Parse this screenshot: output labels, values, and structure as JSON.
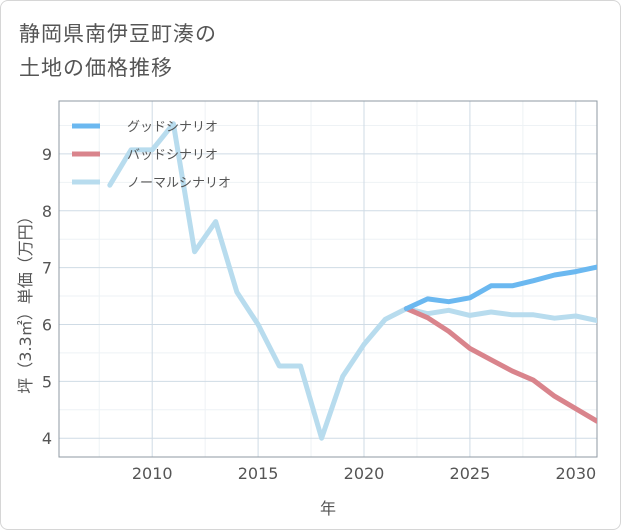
{
  "title": {
    "line1": "静岡県南伊豆町湊の",
    "line2": "土地の価格推移"
  },
  "chart_data": {
    "type": "line",
    "title": "静岡県南伊豆町湊の土地の価格推移",
    "xlabel": "年",
    "ylabel": "坪（3.3㎡）単価（万円）",
    "xlim": [
      2005.6,
      2031
    ],
    "ylim": [
      3.67,
      9.93
    ],
    "xticks": [
      2010,
      2015,
      2020,
      2025,
      2030
    ],
    "yticks": [
      4,
      5,
      6,
      7,
      8,
      9
    ],
    "grid": true,
    "legend_position": "top-left",
    "series": [
      {
        "name": "グッドシナリオ",
        "color": "#6bb8f0",
        "x": [
          2022,
          2023,
          2024,
          2025,
          2026,
          2027,
          2028,
          2029,
          2030,
          2031
        ],
        "values": [
          6.28,
          6.45,
          6.4,
          6.47,
          6.68,
          6.68,
          6.77,
          6.87,
          6.93,
          7.01
        ]
      },
      {
        "name": "バッドシナリオ",
        "color": "#d9848c",
        "x": [
          2022,
          2023,
          2024,
          2025,
          2026,
          2027,
          2028,
          2029,
          2030,
          2031
        ],
        "values": [
          6.28,
          6.12,
          5.88,
          5.58,
          5.38,
          5.18,
          5.02,
          4.74,
          4.52,
          4.3
        ]
      },
      {
        "name": "ノーマルシナリオ",
        "color": "#b8dcee",
        "x": [
          2008,
          2009,
          2010,
          2011,
          2012,
          2013,
          2014,
          2015,
          2016,
          2017,
          2018,
          2019,
          2020,
          2021,
          2022,
          2023,
          2024,
          2025,
          2026,
          2027,
          2028,
          2029,
          2030,
          2031
        ],
        "values": [
          8.45,
          9.07,
          9.07,
          9.53,
          7.28,
          7.81,
          6.57,
          6.0,
          5.27,
          5.27,
          4.0,
          5.09,
          5.65,
          6.09,
          6.28,
          6.19,
          6.25,
          6.16,
          6.22,
          6.17,
          6.17,
          6.11,
          6.15,
          6.07
        ]
      }
    ]
  }
}
